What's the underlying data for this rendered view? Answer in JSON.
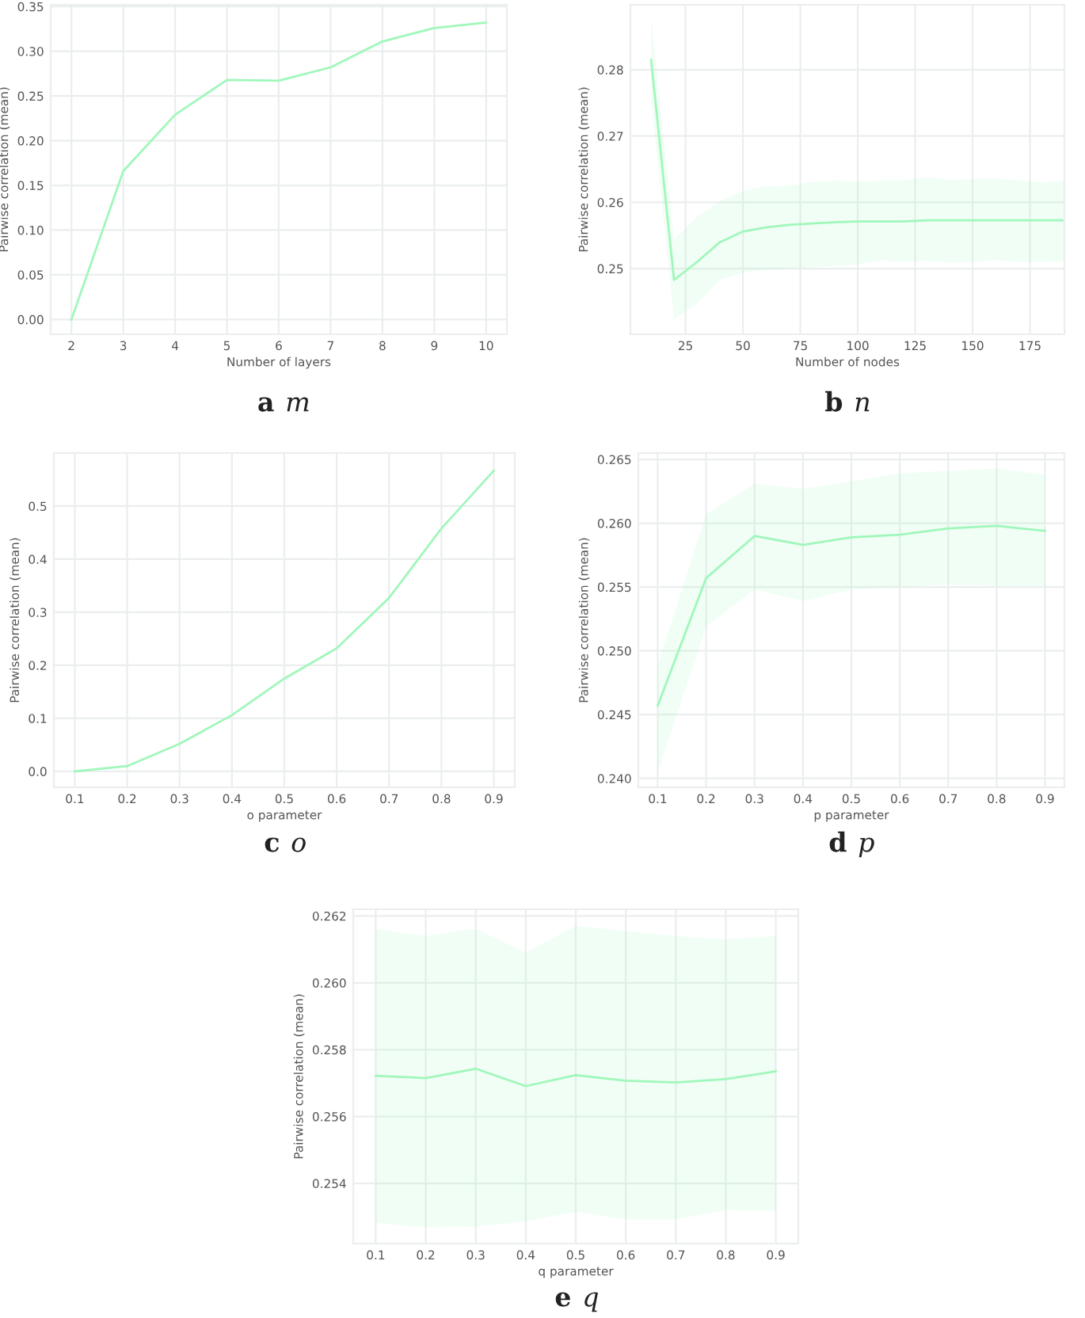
{
  "chart_data": [
    {
      "type": "line",
      "title": "a",
      "subtitle": "m",
      "xlabel": "Number of layers",
      "ylabel": "Pairwise correlation (mean)",
      "grid": true,
      "series": [
        {
          "color": "#a0f7bb",
          "x": [
            2,
            3,
            4,
            5,
            6,
            7,
            8,
            9,
            10
          ],
          "values": [
            0.0,
            0.166,
            0.229,
            0.268,
            0.267,
            0.282,
            0.311,
            0.326,
            0.332
          ]
        }
      ],
      "xlim": [
        1.6,
        10.4
      ],
      "ylim": [
        -0.0165,
        0.352
      ],
      "xticks": [
        2,
        3,
        4,
        5,
        6,
        7,
        8,
        9,
        10
      ],
      "yticks": [
        {
          "value": 0,
          "label": "0.00"
        },
        {
          "value": 0.05,
          "label": "0.05"
        },
        {
          "value": 0.1,
          "label": "0.10"
        },
        {
          "value": 0.15,
          "label": "0.15"
        },
        {
          "value": 0.2,
          "label": "0.20"
        },
        {
          "value": 0.25,
          "label": "0.25"
        },
        {
          "value": 0.3,
          "label": "0.30"
        },
        {
          "value": 0.35,
          "label": "0.35"
        }
      ]
    },
    {
      "type": "line",
      "title": "b",
      "subtitle": "n",
      "xlabel": "Number of nodes",
      "ylabel": "Pairwise correlation (mean)",
      "grid": true,
      "series": [
        {
          "color": "#a0f7bb",
          "x": [
            10,
            20,
            30,
            40,
            50,
            60,
            70,
            80,
            90,
            100,
            110,
            120,
            130,
            140,
            150,
            160,
            170,
            180,
            190
          ],
          "values": [
            0.2815,
            0.2483,
            0.251,
            0.254,
            0.2556,
            0.2562,
            0.2566,
            0.2568,
            0.257,
            0.2571,
            0.2571,
            0.2571,
            0.2573,
            0.2573,
            0.2573,
            0.2573,
            0.2573,
            0.2573,
            0.2573
          ],
          "upper": [
            0.2879,
            0.2544,
            0.2578,
            0.2602,
            0.2617,
            0.2624,
            0.2625,
            0.2631,
            0.2633,
            0.2631,
            0.2633,
            0.2633,
            0.2638,
            0.2634,
            0.2635,
            0.2636,
            0.2633,
            0.263,
            0.2632
          ],
          "lower": [
            0.2755,
            0.2424,
            0.2447,
            0.2483,
            0.2494,
            0.2498,
            0.25,
            0.2502,
            0.2504,
            0.2506,
            0.2513,
            0.251,
            0.2512,
            0.2509,
            0.251,
            0.2513,
            0.251,
            0.251,
            0.2511
          ]
        }
      ],
      "xlim": [
        1,
        190
      ],
      "ylim": [
        0.2401,
        0.2898
      ],
      "xticks": [
        25,
        50,
        75,
        100,
        125,
        150,
        175
      ],
      "yticks": [
        0.25,
        0.26,
        0.27,
        0.28
      ]
    },
    {
      "type": "line",
      "title": "c",
      "subtitle": "o",
      "xlabel": "o parameter",
      "ylabel": "Pairwise correlation (mean)",
      "grid": true,
      "series": [
        {
          "color": "#a0f7bb",
          "x": [
            0.1,
            0.2,
            0.3,
            0.4,
            0.5,
            0.6,
            0.7,
            0.8,
            0.9
          ],
          "values": [
            0.0,
            0.01,
            0.052,
            0.106,
            0.175,
            0.232,
            0.327,
            0.458,
            0.567
          ]
        }
      ],
      "xlim": [
        0.06,
        0.94
      ],
      "ylim": [
        -0.03,
        0.6
      ],
      "xticks": [
        0.1,
        0.2,
        0.3,
        0.4,
        0.5,
        0.6,
        0.7,
        0.8,
        0.9
      ],
      "yticks": [
        {
          "value": 0,
          "label": "0.0"
        },
        0.1,
        0.2,
        0.3,
        0.4,
        0.5
      ]
    },
    {
      "type": "line",
      "title": "d",
      "subtitle": "p",
      "xlabel": "p parameter",
      "ylabel": "Pairwise correlation (mean)",
      "grid": true,
      "series": [
        {
          "color": "#a0f7bb",
          "x": [
            0.1,
            0.2,
            0.3,
            0.4,
            0.5,
            0.6,
            0.7,
            0.8,
            0.9
          ],
          "values": [
            0.2457,
            0.2557,
            0.259,
            0.2583,
            0.2589,
            0.2591,
            0.2596,
            0.2598,
            0.2594
          ],
          "upper": [
            0.2489,
            0.2607,
            0.2631,
            0.2627,
            0.2633,
            0.2639,
            0.2641,
            0.2643,
            0.2638
          ],
          "lower": [
            0.2405,
            0.2519,
            0.2548,
            0.2539,
            0.2548,
            0.255,
            0.2552,
            0.2551,
            0.2551
          ]
        }
      ],
      "xlim": [
        0.06,
        0.94
      ],
      "ylim": [
        0.2393,
        0.2655
      ],
      "xticks": [
        0.1,
        0.2,
        0.3,
        0.4,
        0.5,
        0.6,
        0.7,
        0.8,
        0.9
      ],
      "yticks": [
        {
          "value": 0.24,
          "label": "0.240"
        },
        0.245,
        {
          "value": 0.25,
          "label": "0.250"
        },
        0.255,
        {
          "value": 0.26,
          "label": "0.260"
        },
        0.265
      ]
    },
    {
      "type": "line",
      "title": "e",
      "subtitle": "q",
      "xlabel": "q parameter",
      "ylabel": "Pairwise correlation (mean)",
      "grid": true,
      "series": [
        {
          "color": "#a0f7bb",
          "x": [
            0.1,
            0.2,
            0.3,
            0.4,
            0.5,
            0.6,
            0.7,
            0.8,
            0.9
          ],
          "values": [
            0.25722,
            0.25715,
            0.25743,
            0.25691,
            0.25724,
            0.25707,
            0.25702,
            0.25712,
            0.25735
          ],
          "upper": [
            0.26162,
            0.2614,
            0.26162,
            0.2609,
            0.2617,
            0.26155,
            0.2614,
            0.2613,
            0.2614
          ],
          "lower": [
            0.25282,
            0.25268,
            0.2527,
            0.25287,
            0.25315,
            0.25292,
            0.25292,
            0.25321,
            0.25318
          ]
        }
      ],
      "xlim": [
        0.055,
        0.945
      ],
      "ylim": [
        0.2522,
        0.2622
      ],
      "xticks": [
        0.1,
        0.2,
        0.3,
        0.4,
        0.5,
        0.6,
        0.7,
        0.8,
        0.9
      ],
      "yticks": [
        0.254,
        0.256,
        0.258,
        {
          "value": 0.26,
          "label": "0.260"
        },
        0.262
      ]
    }
  ]
}
